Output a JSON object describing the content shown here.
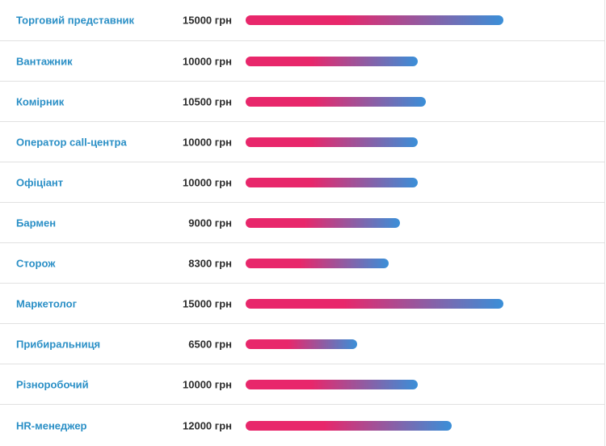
{
  "chart_data": {
    "type": "bar",
    "orientation": "horizontal",
    "unit": "грн",
    "categories": [
      "Торговий представник",
      "Вантажник",
      "Комірник",
      "Оператор call-центра",
      "Офіціант",
      "Бармен",
      "Сторож",
      "Маркетолог",
      "Прибиральниця",
      "Різноробочий",
      "HR-менеджер"
    ],
    "values": [
      15000,
      10000,
      10500,
      10000,
      10000,
      9000,
      8300,
      15000,
      6500,
      10000,
      12000
    ],
    "value_labels": [
      "15000 грн",
      "10000 грн",
      "10500 грн",
      "10000 грн",
      "10000 грн",
      "9000 грн",
      "8300 грн",
      "15000 грн",
      "6500 грн",
      "10000 грн",
      "12000 грн"
    ],
    "xlim": [
      0,
      15000
    ],
    "grid": false,
    "legend": "none"
  },
  "colors": {
    "label": "#2a8fc6",
    "value": "#2b2b2b",
    "bar_start": "#e8276b",
    "bar_end": "#3a8fd8",
    "divider": "#e1e1e1"
  }
}
